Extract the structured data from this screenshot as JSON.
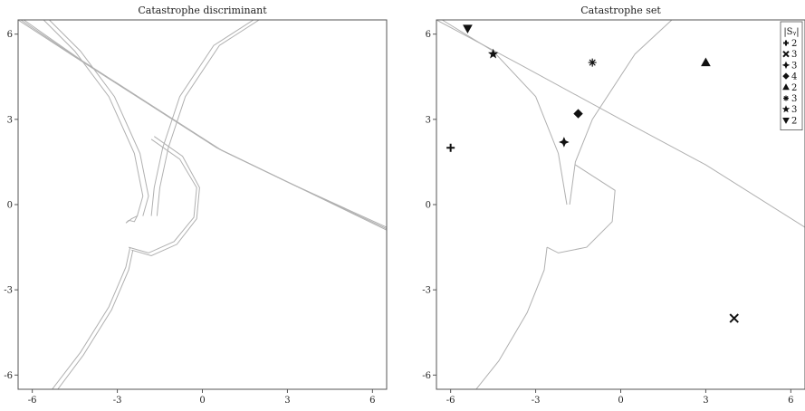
{
  "chart_data": [
    {
      "type": "line",
      "title": "Catastrophe discriminant",
      "xlabel": "",
      "ylabel": "",
      "xlim": [
        -6.5,
        6.5
      ],
      "ylim": [
        -6.5,
        6.5
      ],
      "xticks": [
        -6,
        -3,
        0,
        3,
        6
      ],
      "yticks": [
        -6,
        -3,
        0,
        3,
        6
      ],
      "grid": false,
      "series": [
        {
          "points": [
            [
              -6.5,
              6.5
            ],
            [
              -4.5,
              5.2
            ],
            [
              -2.0,
              3.6
            ],
            [
              0.5,
              2.0
            ],
            [
              3.0,
              0.8
            ],
            [
              6.5,
              -0.9
            ]
          ],
          "color": "#b0b0b0"
        },
        {
          "points": [
            [
              -6.4,
              6.5
            ],
            [
              -4.4,
              5.15
            ],
            [
              -1.9,
              3.55
            ],
            [
              0.6,
              1.95
            ],
            [
              3.1,
              0.75
            ],
            [
              6.5,
              -0.85
            ]
          ],
          "color": "#b0b0b0"
        },
        {
          "points": [
            [
              -6.3,
              6.5
            ],
            [
              -4.3,
              5.1
            ],
            [
              -1.8,
              3.5
            ],
            [
              0.7,
              1.9
            ],
            [
              3.2,
              0.7
            ],
            [
              6.5,
              -0.8
            ]
          ],
          "color": "#b0b0b0"
        },
        {
          "points": [
            [
              -5.6,
              6.5
            ],
            [
              -4.5,
              5.4
            ],
            [
              -3.3,
              3.8
            ],
            [
              -2.4,
              1.8
            ],
            [
              -2.1,
              0.3
            ],
            [
              -2.3,
              -0.4
            ]
          ],
          "color": "#b0b0b0"
        },
        {
          "points": [
            [
              -5.4,
              6.5
            ],
            [
              -4.3,
              5.4
            ],
            [
              -3.1,
              3.8
            ],
            [
              -2.2,
              1.8
            ],
            [
              -1.9,
              0.3
            ],
            [
              -2.1,
              -0.4
            ]
          ],
          "color": "#b0b0b0"
        },
        {
          "points": [
            [
              -1.8,
              -0.4
            ],
            [
              -1.7,
              0.6
            ],
            [
              -1.4,
              2.0
            ],
            [
              -0.8,
              3.8
            ],
            [
              0.4,
              5.6
            ],
            [
              1.8,
              6.5
            ]
          ],
          "color": "#b0b0b0"
        },
        {
          "points": [
            [
              -1.6,
              -0.4
            ],
            [
              -1.5,
              0.6
            ],
            [
              -1.2,
              2.0
            ],
            [
              -0.6,
              3.8
            ],
            [
              0.6,
              5.6
            ],
            [
              2.0,
              6.5
            ]
          ],
          "color": "#b0b0b0"
        },
        {
          "points": [
            [
              -1.7,
              2.4
            ],
            [
              -0.7,
              1.7
            ],
            [
              -0.1,
              0.6
            ],
            [
              -0.2,
              -0.5
            ],
            [
              -0.9,
              -1.4
            ],
            [
              -1.8,
              -1.8
            ],
            [
              -2.5,
              -1.6
            ]
          ],
          "color": "#b0b0b0"
        },
        {
          "points": [
            [
              -1.8,
              2.3
            ],
            [
              -0.8,
              1.6
            ],
            [
              -0.2,
              0.6
            ],
            [
              -0.3,
              -0.45
            ],
            [
              -1.0,
              -1.3
            ],
            [
              -1.9,
              -1.7
            ],
            [
              -2.6,
              -1.5
            ]
          ],
          "color": "#b0b0b0"
        },
        {
          "points": [
            [
              -2.55,
              -1.5
            ],
            [
              -2.7,
              -2.2
            ],
            [
              -3.3,
              -3.6
            ],
            [
              -4.3,
              -5.2
            ],
            [
              -5.3,
              -6.5
            ]
          ],
          "color": "#b0b0b0"
        },
        {
          "points": [
            [
              -2.45,
              -1.6
            ],
            [
              -2.6,
              -2.3
            ],
            [
              -3.2,
              -3.7
            ],
            [
              -4.2,
              -5.3
            ],
            [
              -5.1,
              -6.5
            ]
          ],
          "color": "#b0b0b0"
        },
        {
          "points": [
            [
              -2.6,
              -0.55
            ],
            [
              -2.4,
              -0.6
            ],
            [
              -2.3,
              -0.4
            ],
            [
              -2.5,
              -0.5
            ],
            [
              -2.7,
              -0.65
            ],
            [
              -2.6,
              -0.55
            ]
          ],
          "color": "#b0b0b0"
        }
      ]
    },
    {
      "type": "scatter",
      "title": "Catastrophe set",
      "xlabel": "",
      "ylabel": "",
      "xlim": [
        -6.5,
        6.5
      ],
      "ylim": [
        -6.5,
        6.5
      ],
      "xticks": [
        -6,
        -3,
        0,
        3,
        6
      ],
      "yticks": [
        -6,
        -3,
        0,
        3,
        6
      ],
      "grid": false,
      "legend": {
        "title": "|Sᵧ|",
        "placement": "top-right"
      },
      "curves": [
        {
          "points": [
            [
              -6.5,
              6.5
            ],
            [
              -3.5,
              4.9
            ],
            [
              0.0,
              3.0
            ],
            [
              3.0,
              1.4
            ],
            [
              6.5,
              -0.8
            ]
          ],
          "color": "#b0b0b0"
        },
        {
          "points": [
            [
              -6.3,
              6.5
            ],
            [
              -4.5,
              5.4
            ],
            [
              -3.0,
              3.8
            ],
            [
              -2.2,
              1.8
            ],
            [
              -1.9,
              0.0
            ]
          ],
          "color": "#b0b0b0"
        },
        {
          "points": [
            [
              -1.8,
              0.0
            ],
            [
              -1.6,
              1.5
            ],
            [
              -1.0,
              3.0
            ],
            [
              0.5,
              5.3
            ],
            [
              1.8,
              6.5
            ]
          ],
          "color": "#b0b0b0"
        },
        {
          "points": [
            [
              -1.6,
              1.4
            ],
            [
              -0.2,
              0.5
            ],
            [
              -0.3,
              -0.6
            ],
            [
              -1.2,
              -1.5
            ],
            [
              -2.2,
              -1.7
            ],
            [
              -2.6,
              -1.5
            ]
          ],
          "color": "#b0b0b0"
        },
        {
          "points": [
            [
              -2.6,
              -1.5
            ],
            [
              -2.7,
              -2.3
            ],
            [
              -3.3,
              -3.8
            ],
            [
              -4.3,
              -5.5
            ],
            [
              -5.1,
              -6.5
            ]
          ],
          "color": "#b0b0b0"
        }
      ],
      "series": [
        {
          "label": "2",
          "marker": "plus",
          "x": -6.0,
          "y": 2.0
        },
        {
          "label": "3",
          "marker": "x",
          "x": 4.0,
          "y": -4.0
        },
        {
          "label": "3",
          "marker": "star4",
          "x": -2.0,
          "y": 2.2
        },
        {
          "label": "4",
          "marker": "diamond",
          "x": -1.5,
          "y": 3.2
        },
        {
          "label": "2",
          "marker": "triangle-up",
          "x": 3.0,
          "y": 5.0
        },
        {
          "label": "3",
          "marker": "asterisk",
          "x": -1.0,
          "y": 5.0
        },
        {
          "label": "3",
          "marker": "star5",
          "x": -4.5,
          "y": 5.3
        },
        {
          "label": "2",
          "marker": "triangle-down",
          "x": -5.4,
          "y": 6.2
        }
      ]
    }
  ]
}
